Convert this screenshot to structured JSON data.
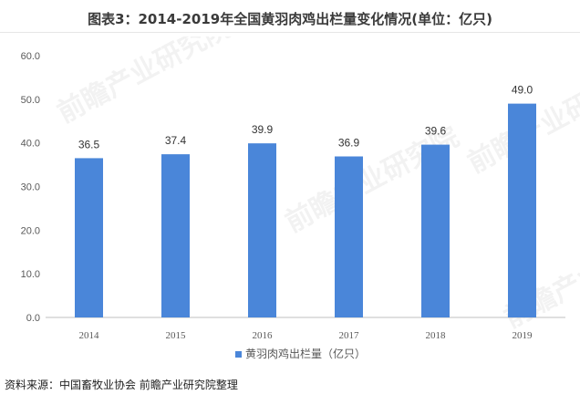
{
  "title": "图表3：2014-2019年全国黄羽肉鸡出栏量变化情况(单位：亿只)",
  "source": "资料来源：中国畜牧业协会 前瞻产业研究院整理",
  "watermark": "前瞻产业研究院",
  "colors": {
    "bar": "#4a86d9",
    "axis": "#bfbfbf",
    "text": "#595959"
  },
  "chart_data": {
    "type": "bar",
    "categories": [
      "2014",
      "2015",
      "2016",
      "2017",
      "2018",
      "2019"
    ],
    "series": [
      {
        "name": "黄羽肉鸡出栏量（亿只）",
        "values": [
          36.5,
          37.4,
          39.9,
          36.9,
          39.6,
          49.0
        ]
      }
    ],
    "ylim": [
      0,
      60
    ],
    "yticks": [
      "0.0",
      "10.0",
      "20.0",
      "30.0",
      "40.0",
      "50.0",
      "60.0"
    ],
    "data_labels": [
      "36.5",
      "37.4",
      "39.9",
      "36.9",
      "39.6",
      "49.0"
    ],
    "grid": false,
    "legend": "bottom"
  }
}
